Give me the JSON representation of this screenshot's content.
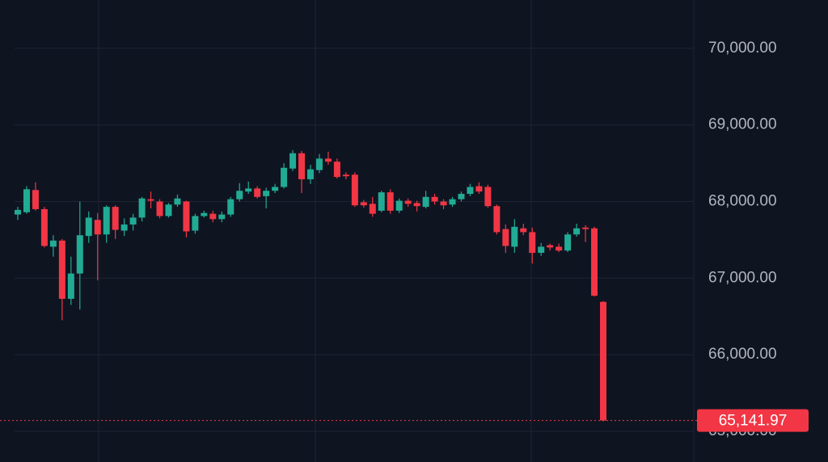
{
  "chart_data": {
    "type": "candlestick",
    "up_color": "#22ab94",
    "down_color": "#f23645",
    "ylim": [
      64600,
      70630
    ],
    "yticks": [
      {
        "value": 70000,
        "label": "70,000.00"
      },
      {
        "value": 69000,
        "label": "69,000.00"
      },
      {
        "value": 68000,
        "label": "68,000.00"
      },
      {
        "value": 67000,
        "label": "67,000.00"
      },
      {
        "value": 66000,
        "label": "66,000.00"
      },
      {
        "value": 65000,
        "label": "65,000.00"
      }
    ],
    "grid": true,
    "last_price": {
      "value": 65141.97,
      "label": "65,141.97"
    },
    "open": [
      67830,
      67860,
      68150,
      67900,
      67410,
      67490,
      66730,
      67060,
      67550,
      67760,
      67570,
      67930,
      67620,
      67700,
      67790,
      68030,
      68000,
      67810,
      67960,
      68000,
      67620,
      67810,
      67840,
      67770,
      67830,
      68030,
      68130,
      68170,
      68070,
      68140,
      68190,
      68430,
      68630,
      68290,
      68410,
      68560,
      68520,
      68350,
      68350,
      67990,
      67970,
      67880,
      68120,
      67880,
      68010,
      67980,
      67930,
      68060,
      68000,
      67960,
      68030,
      68100,
      68200,
      68190,
      67940,
      67640,
      67410,
      67650,
      67600,
      67330,
      67430,
      67410,
      67360,
      67570,
      67660,
      67650,
      66690
    ],
    "high": [
      67930,
      68200,
      68250,
      67930,
      67560,
      67510,
      67280,
      68000,
      67870,
      67850,
      67950,
      67950,
      67780,
      67840,
      68060,
      68130,
      68030,
      67980,
      68090,
      68010,
      67840,
      67880,
      67880,
      67870,
      68060,
      68240,
      68260,
      68200,
      68180,
      68230,
      68500,
      68670,
      68660,
      68480,
      68620,
      68650,
      68560,
      68380,
      68380,
      68020,
      68060,
      68140,
      68160,
      68040,
      68040,
      68010,
      68140,
      68100,
      68030,
      68060,
      68130,
      68230,
      68250,
      68220,
      67960,
      67700,
      67770,
      67710,
      67660,
      67460,
      67450,
      67450,
      67600,
      67710,
      67690,
      67670,
      66700
    ],
    "low": [
      67760,
      67840,
      67880,
      67400,
      67280,
      66450,
      66650,
      66590,
      67460,
      66970,
      67460,
      67510,
      67550,
      67620,
      67740,
      67910,
      67780,
      67790,
      67930,
      67530,
      67580,
      67790,
      67730,
      67730,
      67800,
      68000,
      68100,
      68040,
      67910,
      68110,
      68170,
      68400,
      68110,
      68230,
      68370,
      68480,
      68300,
      68290,
      67930,
      67920,
      67800,
      67860,
      67840,
      67850,
      67930,
      67870,
      67910,
      67960,
      67900,
      67930,
      68000,
      68070,
      68100,
      67920,
      67570,
      67330,
      67330,
      67560,
      67190,
      67290,
      67360,
      67340,
      67340,
      67540,
      67470,
      66760,
      65130
    ],
    "close": [
      67890,
      68160,
      67900,
      67420,
      67490,
      66730,
      67060,
      67560,
      67790,
      67570,
      67930,
      67630,
      67700,
      67790,
      68040,
      68010,
      67810,
      67960,
      68040,
      67610,
      67810,
      67850,
      67770,
      67830,
      68030,
      68140,
      68170,
      68060,
      68140,
      68190,
      68440,
      68630,
      68290,
      68420,
      68560,
      68520,
      68320,
      68330,
      67950,
      67950,
      67840,
      68120,
      67880,
      68010,
      67970,
      67940,
      68060,
      68000,
      67950,
      68030,
      68100,
      68190,
      68130,
      67940,
      67600,
      67420,
      67670,
      67600,
      67330,
      67410,
      67400,
      67360,
      67570,
      67650,
      67640,
      66770,
      65141.97
    ]
  }
}
